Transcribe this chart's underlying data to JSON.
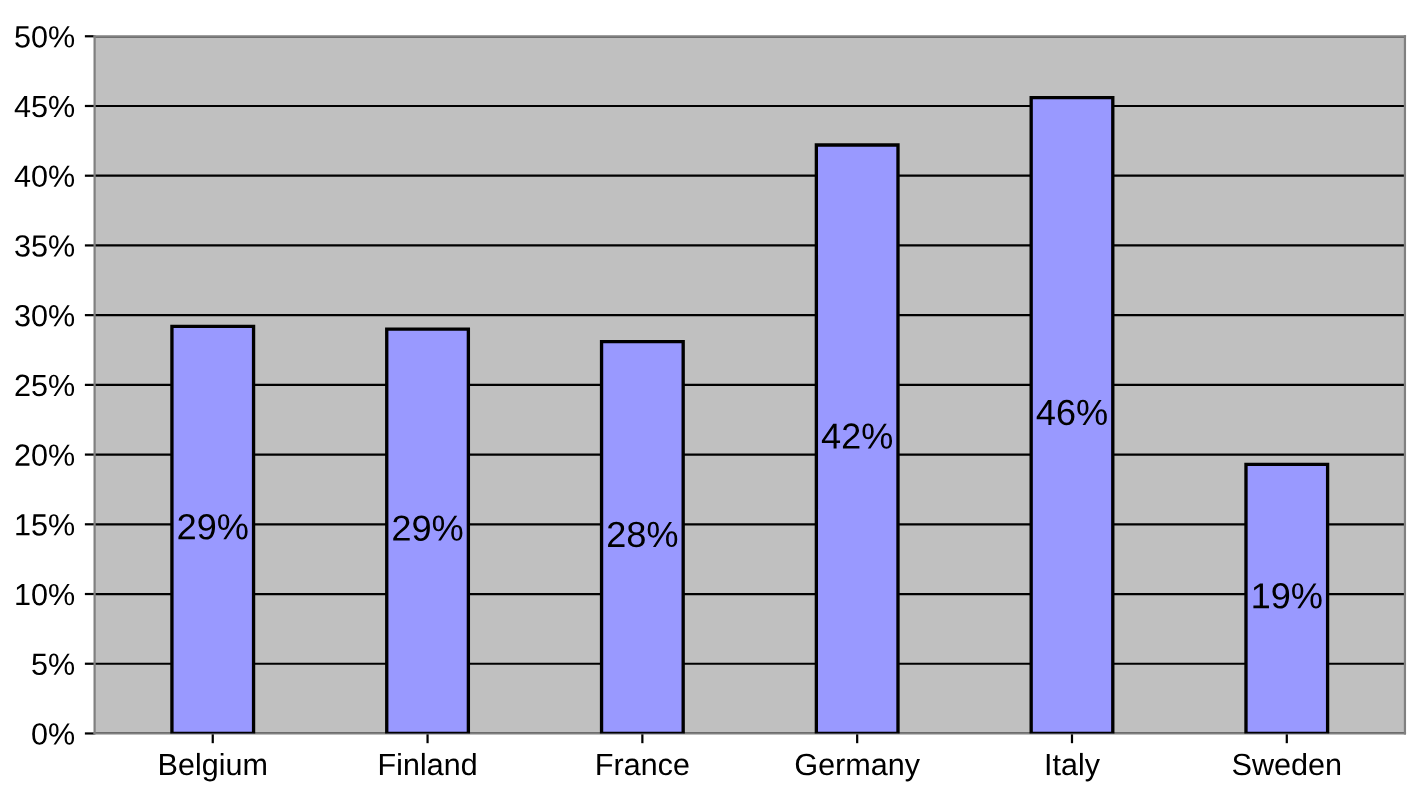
{
  "chart_data": {
    "type": "bar",
    "categories": [
      "Belgium",
      "Finland",
      "France",
      "Germany",
      "Italy",
      "Sweden"
    ],
    "values": [
      29.2,
      29.0,
      28.1,
      42.2,
      45.6,
      19.3
    ],
    "value_labels": [
      "29%",
      "29%",
      "28%",
      "42%",
      "46%",
      "19%"
    ],
    "color": "#9999ff",
    "ylim": [
      0,
      50
    ],
    "yticks": [
      {
        "value": 0,
        "label": "0%"
      },
      {
        "value": 5,
        "label": "5%"
      },
      {
        "value": 10,
        "label": "10%"
      },
      {
        "value": 15,
        "label": "15%"
      },
      {
        "value": 20,
        "label": "20%"
      },
      {
        "value": 25,
        "label": "25%"
      },
      {
        "value": 30,
        "label": "30%"
      },
      {
        "value": 35,
        "label": "35%"
      },
      {
        "value": 40,
        "label": "40%"
      },
      {
        "value": 45,
        "label": "45%"
      },
      {
        "value": 50,
        "label": "50%"
      }
    ],
    "grid": "y",
    "legend": false
  }
}
